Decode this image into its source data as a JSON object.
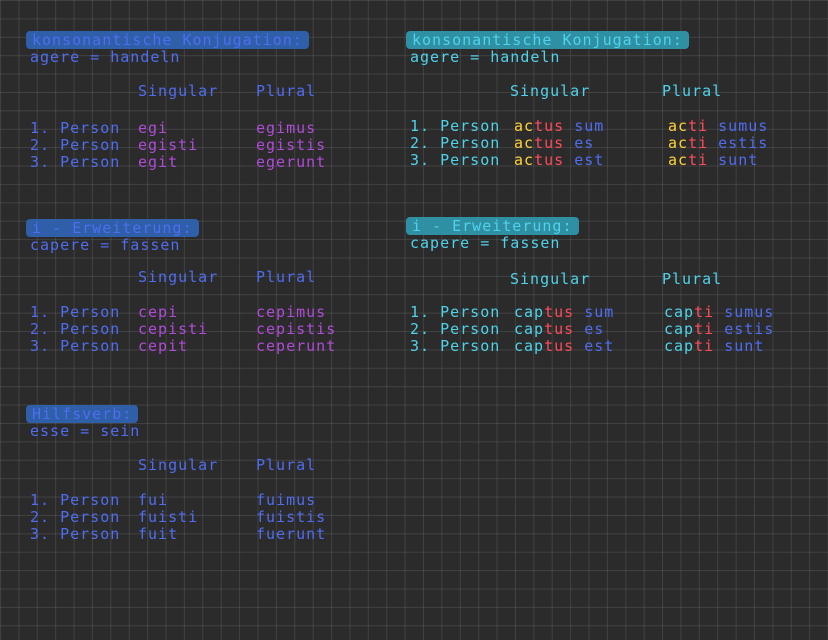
{
  "colors": {
    "blue": "#4f6df0",
    "blue_highlight": "#2f5fa8",
    "teal": "#4fd3ea",
    "teal_highlight": "#2f8fa3",
    "violet": "#b04bd8",
    "red": "#ff4a5a",
    "yellow": "#ffd23a"
  },
  "sections": {
    "kons_left": {
      "title": "konsonantische Konjugation:",
      "subtitle": "agere = handeln",
      "col_singular": "Singular",
      "col_plural": "Plural",
      "rows": [
        {
          "person": "1. Person",
          "singular": "egi",
          "plural": "egimus"
        },
        {
          "person": "2. Person",
          "singular": "egisti",
          "plural": "egistis"
        },
        {
          "person": "3. Person",
          "singular": "egit",
          "plural": "egerunt"
        }
      ]
    },
    "i_left": {
      "title": "i - Erweiterung:",
      "subtitle": "capere = fassen",
      "col_singular": "Singular",
      "col_plural": "Plural",
      "rows": [
        {
          "person": "1. Person",
          "singular": "cepi",
          "plural": "cepimus"
        },
        {
          "person": "2. Person",
          "singular": "cepisti",
          "plural": "cepistis"
        },
        {
          "person": "3. Person",
          "singular": "cepit",
          "plural": "ceperunt"
        }
      ]
    },
    "esse": {
      "title": "Hilfsverb:",
      "subtitle": "esse = sein",
      "col_singular": "Singular",
      "col_plural": "Plural",
      "rows": [
        {
          "person": "1. Person",
          "singular": "fui",
          "plural": "fuimus"
        },
        {
          "person": "2. Person",
          "singular": "fuisti",
          "plural": "fuistis"
        },
        {
          "person": "3. Person",
          "singular": "fuit",
          "plural": "fuerunt"
        }
      ]
    },
    "kons_right": {
      "title": "konsonantische Konjugation:",
      "subtitle": "agere = handeln",
      "col_singular": "Singular",
      "col_plural": "Plural",
      "rows": [
        {
          "person": "1. Person",
          "sg_stem": "ac",
          "sg_end": "tus",
          "sg_aux": "sum",
          "pl_stem": "ac",
          "pl_end": "ti",
          "pl_aux": "sumus"
        },
        {
          "person": "2. Person",
          "sg_stem": "ac",
          "sg_end": "tus",
          "sg_aux": "es",
          "pl_stem": "ac",
          "pl_end": "ti",
          "pl_aux": "estis"
        },
        {
          "person": "3. Person",
          "sg_stem": "ac",
          "sg_end": "tus",
          "sg_aux": "est",
          "pl_stem": "ac",
          "pl_end": "ti",
          "pl_aux": "sunt"
        }
      ]
    },
    "i_right": {
      "title": "i - Erweiterung:",
      "subtitle": "capere = fassen",
      "col_singular": "Singular",
      "col_plural": "Plural",
      "rows": [
        {
          "person": "1. Person",
          "sg_stem": "cap",
          "sg_end": "tus",
          "sg_aux": "sum",
          "pl_stem": "cap",
          "pl_end": "ti",
          "pl_aux": "sumus"
        },
        {
          "person": "2. Person",
          "sg_stem": "cap",
          "sg_end": "tus",
          "sg_aux": "es",
          "pl_stem": "cap",
          "pl_end": "ti",
          "pl_aux": "estis"
        },
        {
          "person": "3. Person",
          "sg_stem": "cap",
          "sg_end": "tus",
          "sg_aux": "est",
          "pl_stem": "cap",
          "pl_end": "ti",
          "pl_aux": "sunt"
        }
      ]
    }
  }
}
